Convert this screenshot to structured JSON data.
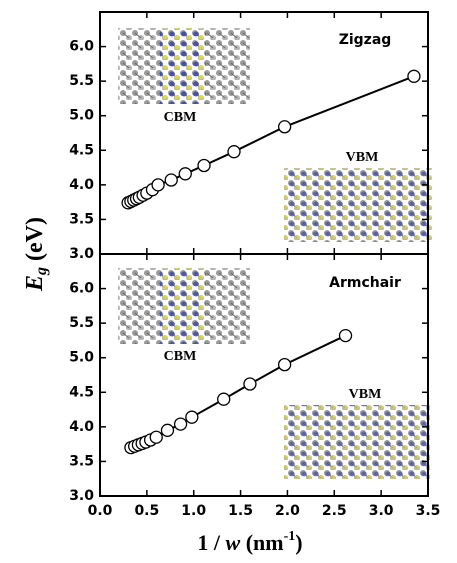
{
  "chart_data": [
    {
      "type": "line",
      "annotations": {
        "structure": "Zigzag",
        "cbm": "CBM",
        "vbm": "VBM"
      },
      "x": [
        0.3,
        0.33,
        0.36,
        0.39,
        0.42,
        0.46,
        0.5,
        0.56,
        0.62,
        0.76,
        0.91,
        1.11,
        1.43,
        1.97,
        3.35
      ],
      "series": [
        {
          "name": "Zigzag",
          "color": "#000000",
          "values": [
            3.74,
            3.76,
            3.78,
            3.8,
            3.82,
            3.85,
            3.88,
            3.93,
            4.0,
            4.07,
            4.16,
            4.28,
            4.48,
            4.84,
            5.57
          ]
        }
      ],
      "xlim": [
        0,
        3.5
      ],
      "xticks": [
        0,
        0.5,
        1,
        1.5,
        2,
        2.5,
        3,
        3.5
      ],
      "ylim": [
        3,
        6.5
      ],
      "yticks": [
        {
          "value": 3,
          "label": "3.0"
        },
        3.5,
        {
          "value": 4,
          "label": "4.0"
        },
        4.5,
        {
          "value": 5,
          "label": "5.0"
        },
        5.5,
        {
          "value": 6,
          "label": "6.0"
        }
      ]
    },
    {
      "type": "line",
      "annotations": {
        "structure": "Armchair",
        "cbm": "CBM",
        "vbm": "VBM"
      },
      "x": [
        0.33,
        0.37,
        0.41,
        0.45,
        0.49,
        0.54,
        0.6,
        0.72,
        0.86,
        0.98,
        1.32,
        1.6,
        1.97,
        2.62
      ],
      "series": [
        {
          "name": "Armchair",
          "color": "#000000",
          "values": [
            3.7,
            3.72,
            3.74,
            3.76,
            3.78,
            3.81,
            3.85,
            3.95,
            4.04,
            4.14,
            4.4,
            4.62,
            4.9,
            5.32
          ]
        }
      ],
      "xlim": [
        0,
        3.5
      ],
      "xticks": [
        {
          "value": 0,
          "label": "0.0"
        },
        0.5,
        {
          "value": 1,
          "label": "1.0"
        },
        1.5,
        {
          "value": 2,
          "label": "2.0"
        },
        2.5,
        {
          "value": 3,
          "label": "3.0"
        },
        3.5
      ],
      "ylim": [
        3,
        6.5
      ],
      "yticks": [
        {
          "value": 3,
          "label": "3.0"
        },
        3.5,
        {
          "value": 4,
          "label": "4.0"
        },
        4.5,
        {
          "value": 5,
          "label": "5.0"
        },
        5.5,
        {
          "value": 6,
          "label": "6.0"
        }
      ],
      "x_label": {
        "prefix": "1 / ",
        "var": "w",
        "unit": " (nm",
        "exp": "-1",
        "close": ")"
      },
      "y_label": {
        "main": "E",
        "sub": "g",
        "unit": " (eV)"
      }
    }
  ]
}
